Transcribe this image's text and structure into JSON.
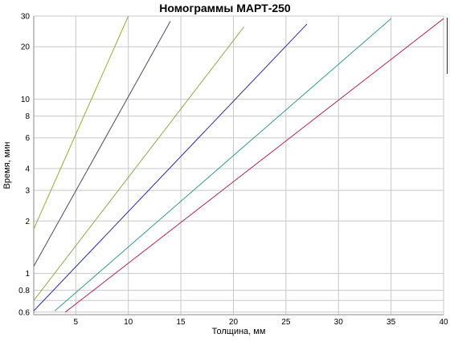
{
  "chart_data": {
    "type": "line",
    "title": "Номограммы МАРТ-250",
    "xlabel": "Толщина, мм",
    "ylabel": "Время, мин",
    "xlim": [
      1,
      40
    ],
    "ylim": [
      0.58,
      30
    ],
    "y_scale": "log",
    "grid": true,
    "x_ticks": [
      5,
      10,
      15,
      20,
      25,
      30,
      35,
      40
    ],
    "y_ticks": [
      0.6,
      0.7,
      0.8,
      1,
      2,
      3,
      4,
      6,
      8,
      10,
      20,
      30
    ],
    "y_tick_labels": [
      "0.6",
      "",
      "0.8",
      "1",
      "2",
      "3",
      "4",
      "6",
      "8",
      "10",
      "20",
      "30"
    ],
    "series": [
      {
        "color": "#9aa83a",
        "x": [
          1,
          10
        ],
        "y": [
          1.8,
          30
        ]
      },
      {
        "color": "#4a4a6e",
        "x": [
          1,
          14
        ],
        "y": [
          1.1,
          28
        ]
      },
      {
        "color": "#8fa850",
        "x": [
          1,
          21
        ],
        "y": [
          0.7,
          26
        ]
      },
      {
        "color": "#2a2aa0",
        "x": [
          1,
          27
        ],
        "y": [
          0.61,
          27
        ]
      },
      {
        "color": "#3a9a90",
        "x": [
          3,
          35
        ],
        "y": [
          0.61,
          29
        ]
      },
      {
        "color": "#a8285a",
        "x": [
          4,
          40
        ],
        "y": [
          0.6,
          29
        ]
      }
    ]
  }
}
